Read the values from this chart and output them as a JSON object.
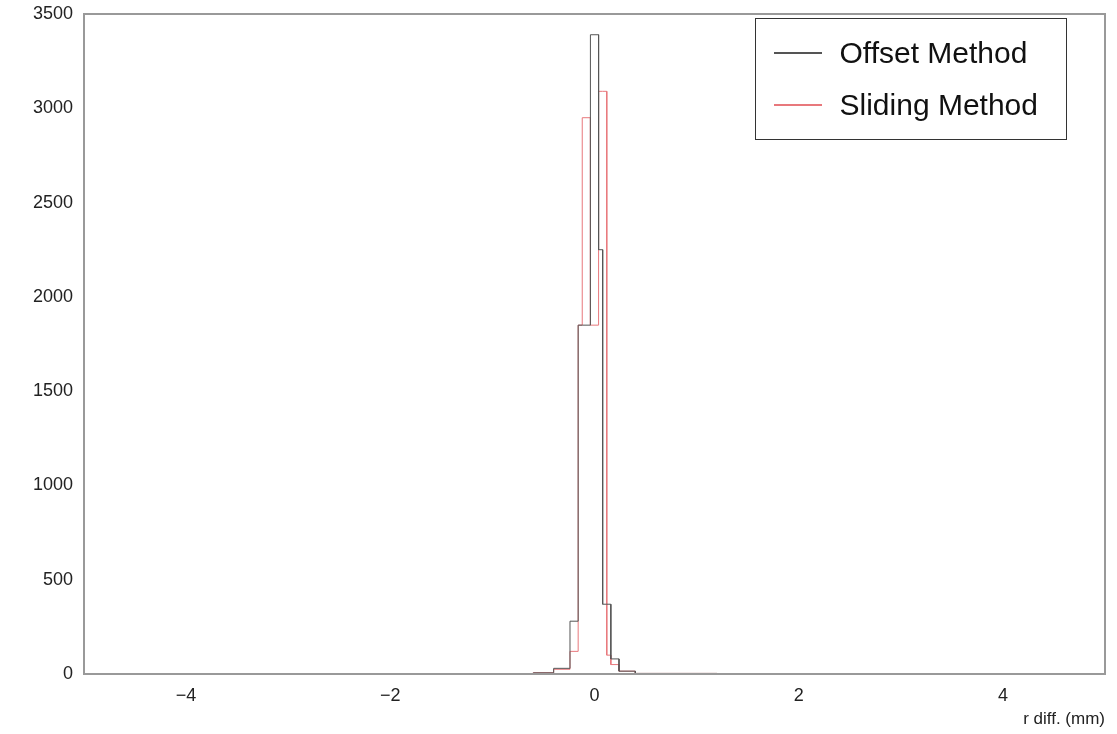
{
  "chart_data": {
    "type": "histogram",
    "xlabel": "r diff. (mm)",
    "bins": [
      -5,
      -1.2,
      -0.6,
      -0.4,
      -0.24,
      -0.16,
      -0.12,
      -0.04,
      0.04,
      0.08,
      0.12,
      0.16,
      0.24,
      0.4,
      1.2,
      5
    ],
    "series": [
      {
        "name": "Offset Method",
        "color": "#555555",
        "values": [
          0,
          2,
          6,
          30,
          280,
          1850,
          1850,
          3390,
          2250,
          370,
          370,
          80,
          15,
          3,
          0
        ]
      },
      {
        "name": "Sliding Method",
        "color": "#e8787c",
        "values": [
          0,
          2,
          7,
          25,
          120,
          1850,
          2950,
          1850,
          3090,
          3090,
          100,
          50,
          15,
          3,
          0
        ]
      }
    ],
    "xlim": [
      -5,
      5
    ],
    "xticks": [
      -4,
      -2,
      0,
      2,
      4
    ],
    "ylim": [
      0,
      3500
    ],
    "yticks": [
      0,
      500,
      1000,
      1500,
      2000,
      2500,
      3000,
      3500
    ],
    "legend": "top right"
  }
}
